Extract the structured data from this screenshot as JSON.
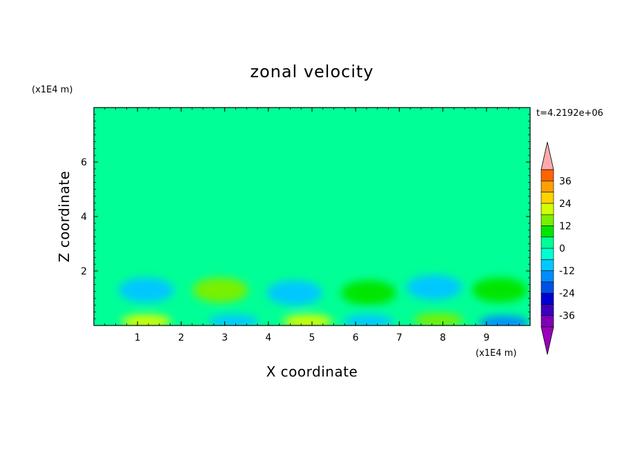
{
  "chart_data": {
    "type": "heatmap",
    "title": "zonal velocity",
    "xlabel": "X coordinate",
    "ylabel": "Z coordinate",
    "x_unit": "(x1E4 m)",
    "y_unit": "(x1E4 m)",
    "time_label": "t=4.2192e+06",
    "xlim": [
      0,
      10
    ],
    "ylim": [
      0,
      8
    ],
    "x_ticks": [
      1,
      2,
      3,
      4,
      5,
      6,
      7,
      8,
      9
    ],
    "x_tick_labels": [
      "1",
      "2",
      "3",
      "4",
      "5",
      "6",
      "7",
      "8",
      "9"
    ],
    "y_ticks": [
      2,
      4,
      6
    ],
    "y_tick_labels": [
      "2",
      "4",
      "6"
    ],
    "colorbar": {
      "levels": [
        -42,
        -36,
        -30,
        -24,
        -18,
        -12,
        -6,
        0,
        6,
        12,
        18,
        24,
        30,
        36,
        42
      ],
      "tick_labels": [
        "-36",
        "-24",
        "-12",
        "0",
        "12",
        "24",
        "36"
      ],
      "tick_values": [
        -36,
        -24,
        -12,
        0,
        12,
        24,
        36
      ],
      "colors": [
        "#7f00b4",
        "#3c00c0",
        "#0000d2",
        "#0050e6",
        "#008cff",
        "#00c8ff",
        "#00ffd2",
        "#00ff96",
        "#00e600",
        "#78f000",
        "#d2ff00",
        "#ffd200",
        "#ffa000",
        "#ff6400",
        "#ff2d00",
        "#e60000"
      ],
      "overflow_high_color": "#ffaaaa",
      "overflow_low_color": "#9900bb"
    },
    "features": {
      "background": "near-zero velocity (0 to 6) over most of domain with horizontal bands of slightly positive (0 to -6) values",
      "bottom_layer": "alternating positive and negative cells below z=2 with peaks near x=1,2.8,4.8,6.3,7.9,9.4"
    },
    "cells": [
      {
        "x": 1.2,
        "z": 1.3,
        "value": -10
      },
      {
        "x": 2.9,
        "z": 1.3,
        "value": 12
      },
      {
        "x": 4.6,
        "z": 1.2,
        "value": -12
      },
      {
        "x": 6.3,
        "z": 1.2,
        "value": 8
      },
      {
        "x": 7.8,
        "z": 1.4,
        "value": -10
      },
      {
        "x": 9.3,
        "z": 1.3,
        "value": 10
      },
      {
        "x": 1.2,
        "z": 0.15,
        "value": 18
      },
      {
        "x": 3.2,
        "z": 0.15,
        "value": -10
      },
      {
        "x": 4.9,
        "z": 0.15,
        "value": 18
      },
      {
        "x": 6.3,
        "z": 0.15,
        "value": -8
      },
      {
        "x": 7.9,
        "z": 0.2,
        "value": 14
      },
      {
        "x": 9.4,
        "z": 0.1,
        "value": -18
      }
    ]
  }
}
